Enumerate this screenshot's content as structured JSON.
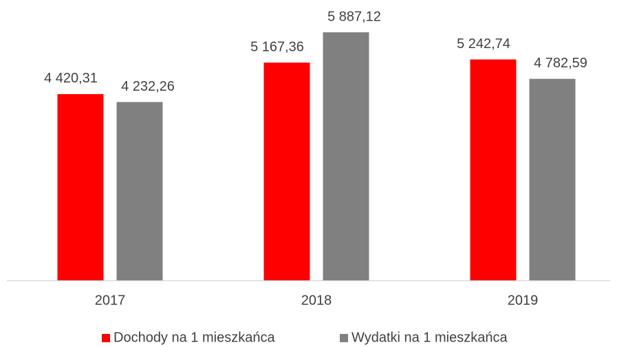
{
  "chart_data": {
    "type": "bar",
    "categories": [
      "2017",
      "2018",
      "2019"
    ],
    "series": [
      {
        "name": "Dochody na 1 mieszkańca",
        "color": "#ff0000",
        "values": [
          4420.31,
          5167.36,
          5242.74
        ],
        "value_labels": [
          "4 420,31",
          "5 167,36",
          "5 242,74"
        ]
      },
      {
        "name": "Wydatki na 1 mieszkańca",
        "color": "#808080",
        "values": [
          4232.26,
          5887.12,
          4782.59
        ],
        "value_labels": [
          "4 232,26",
          "5 887,12",
          "4 782,59"
        ]
      }
    ]
  }
}
